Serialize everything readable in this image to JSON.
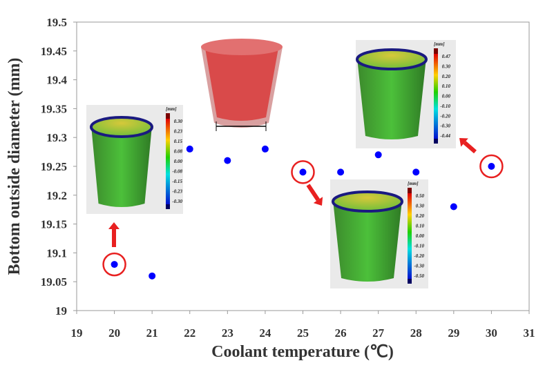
{
  "chart_data": {
    "type": "scatter",
    "title": "",
    "xlabel": "Coolant temperature (℃)",
    "ylabel": "Bottom outside diameter (mm)",
    "xlim": [
      19,
      31
    ],
    "ylim": [
      19,
      19.5
    ],
    "xticks": [
      "19",
      "20",
      "21",
      "22",
      "23",
      "24",
      "25",
      "26",
      "27",
      "28",
      "29",
      "30",
      "31"
    ],
    "yticks": [
      "19",
      "19.05",
      "19.1",
      "19.15",
      "19.2",
      "19.25",
      "19.3",
      "19.35",
      "19.4",
      "19.45",
      "19.5"
    ],
    "grid": false,
    "series": [
      {
        "name": "diameter",
        "color": "#0000ff",
        "x": [
          20,
          21,
          22,
          23,
          24,
          25,
          26,
          27,
          28,
          29,
          30
        ],
        "y": [
          19.08,
          19.06,
          19.28,
          19.26,
          19.28,
          19.24,
          19.24,
          19.27,
          19.24,
          19.18,
          19.25
        ]
      }
    ],
    "highlighted_x": [
      20,
      25,
      30
    ],
    "insets": [
      {
        "name": "deviation-map-20C",
        "unit": "[mm]",
        "labels": [
          "0.30",
          "0.23",
          "0.15",
          "0.08",
          "0.00",
          "-0.08",
          "-0.15",
          "-0.23",
          "-0.30"
        ]
      },
      {
        "name": "deviation-map-25C",
        "unit": "[mm]",
        "labels": [
          "0.50",
          "0.30",
          "0.20",
          "0.10",
          "0.00",
          "-0.10",
          "-0.20",
          "-0.30",
          "-0.50"
        ]
      },
      {
        "name": "deviation-map-30C",
        "unit": "[mm]",
        "labels": [
          "0.47",
          "0.30",
          "0.20",
          "0.10",
          "0.00",
          "-0.10",
          "-0.20",
          "-0.30",
          "-0.44"
        ]
      }
    ]
  }
}
